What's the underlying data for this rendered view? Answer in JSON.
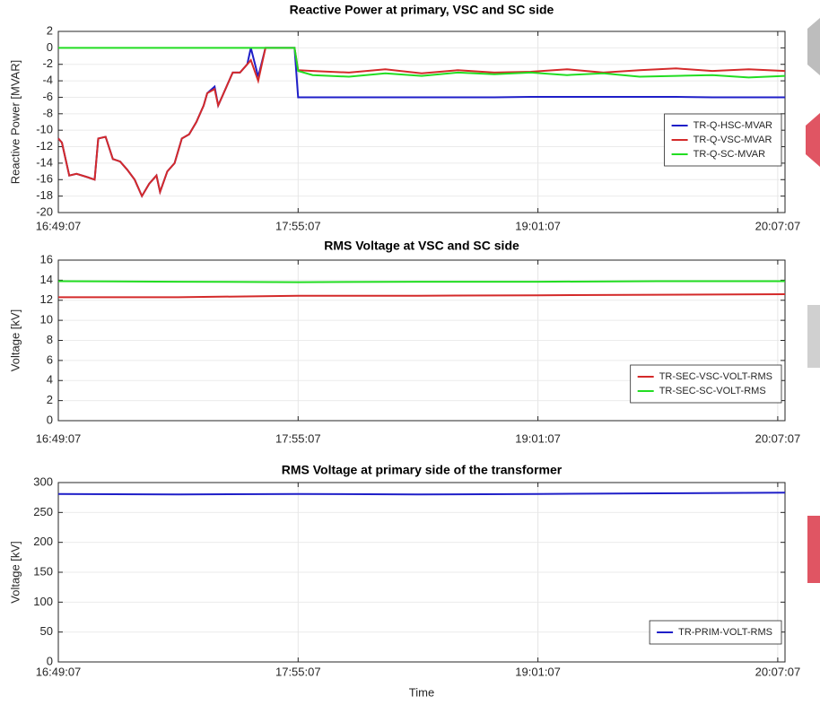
{
  "chart_data": [
    {
      "type": "line",
      "title": "Reactive Power at primary, VSC and SC side",
      "ylabel": "Reactive Power [MVAR]",
      "x": [
        "16:49:07",
        "16:50:07",
        "16:52:07",
        "16:54:07",
        "16:57:07",
        "16:59:07",
        "17:00:07",
        "17:02:07",
        "17:04:07",
        "17:06:07",
        "17:08:07",
        "17:10:07",
        "17:12:07",
        "17:14:07",
        "17:16:07",
        "17:17:07",
        "17:19:07",
        "17:21:07",
        "17:23:07",
        "17:25:07",
        "17:27:07",
        "17:29:07",
        "17:30:07",
        "17:32:07",
        "17:33:07",
        "17:35:07",
        "17:37:07",
        "17:39:07",
        "17:41:07",
        "17:42:07",
        "17:44:07",
        "17:46:07",
        "17:54:07",
        "17:55:07",
        "17:59:07",
        "18:09:07",
        "18:19:07",
        "18:29:07",
        "18:39:07",
        "18:49:07",
        "18:59:07",
        "19:09:07",
        "19:19:07",
        "19:29:07",
        "19:39:07",
        "19:49:07",
        "19:59:07",
        "20:09:07"
      ],
      "series": [
        {
          "name": "TR-Q-HSC-MVAR",
          "color": "#1f1fc8",
          "values": [
            -11,
            -11.5,
            -15.5,
            -15.3,
            -15.7,
            -16,
            -11,
            -10.8,
            -13.5,
            -13.8,
            -14.8,
            -16,
            -18,
            -16.5,
            -15.5,
            -17.5,
            -15,
            -14,
            -11,
            -10.5,
            -9,
            -7,
            -5.5,
            -4.7,
            -7,
            -5,
            -3,
            -3,
            -2,
            0,
            -3.5,
            0,
            0,
            -6,
            -6,
            -6,
            -6,
            -6,
            -6,
            -6,
            -5.95,
            -5.95,
            -5.95,
            -5.95,
            -5.95,
            -6,
            -6,
            -6
          ]
        },
        {
          "name": "TR-Q-VSC-MVAR",
          "color": "#d42a2a",
          "values": [
            -11,
            -11.5,
            -15.5,
            -15.3,
            -15.7,
            -16,
            -11,
            -10.8,
            -13.5,
            -13.8,
            -14.8,
            -16,
            -18,
            -16.5,
            -15.5,
            -17.5,
            -15,
            -14,
            -11,
            -10.5,
            -9,
            -7,
            -5.5,
            -5,
            -7,
            -5,
            -3,
            -3,
            -2,
            -1.5,
            -4,
            0,
            0,
            -2.7,
            -2.8,
            -3,
            -2.6,
            -3.1,
            -2.7,
            -3,
            -2.9,
            -2.6,
            -3,
            -2.7,
            -2.5,
            -2.8,
            -2.6,
            -2.8
          ]
        },
        {
          "name": "TR-Q-SC-MVAR",
          "color": "#22dd22",
          "values": [
            0,
            0,
            0,
            0,
            0,
            0,
            0,
            0,
            0,
            0,
            0,
            0,
            0,
            0,
            0,
            0,
            0,
            0,
            0,
            0,
            0,
            0,
            0,
            0,
            0,
            0,
            0,
            0,
            0,
            0,
            0,
            0,
            0,
            -2.8,
            -3.3,
            -3.5,
            -3.1,
            -3.4,
            -3,
            -3.2,
            -3,
            -3.3,
            -3.1,
            -3.5,
            -3.4,
            -3.3,
            -3.6,
            -3.4
          ]
        }
      ],
      "xlim": [
        "16:49:07",
        "20:09:07"
      ],
      "xticks": [
        "16:49:07",
        "17:55:07",
        "19:01:07",
        "20:07:07"
      ],
      "ylim": [
        -20,
        2
      ],
      "yticks": [
        2,
        0,
        -2,
        -4,
        -6,
        -8,
        -10,
        -12,
        -14,
        -16,
        -18,
        -20
      ],
      "grid": true,
      "legend_loc": "east"
    },
    {
      "type": "line",
      "title": "RMS Voltage at VSC and SC side",
      "ylabel": "Voltage [kV]",
      "x": [
        "16:49:07",
        "17:22:07",
        "17:55:07",
        "18:28:07",
        "19:01:07",
        "19:34:07",
        "20:09:07"
      ],
      "series": [
        {
          "name": "TR-SEC-VSC-VOLT-RMS",
          "color": "#d42a2a",
          "values": [
            12.3,
            12.3,
            12.45,
            12.45,
            12.5,
            12.55,
            12.6
          ]
        },
        {
          "name": "TR-SEC-SC-VOLT-RMS",
          "color": "#22dd22",
          "values": [
            13.9,
            13.85,
            13.8,
            13.85,
            13.85,
            13.9,
            13.9
          ]
        }
      ],
      "xlim": [
        "16:49:07",
        "20:09:07"
      ],
      "xticks": [
        "16:49:07",
        "17:55:07",
        "19:01:07",
        "20:07:07"
      ],
      "ylim": [
        0,
        16
      ],
      "yticks": [
        0,
        2,
        4,
        6,
        8,
        10,
        12,
        14,
        16
      ],
      "grid": true,
      "legend_loc": "southeast"
    },
    {
      "type": "line",
      "title": "RMS Voltage at primary side of the transformer",
      "ylabel": "Voltage [kV]",
      "xlabel": "Time",
      "x": [
        "16:49:07",
        "17:22:07",
        "17:55:07",
        "18:28:07",
        "19:01:07",
        "19:34:07",
        "20:09:07"
      ],
      "series": [
        {
          "name": "TR-PRIM-VOLT-RMS",
          "color": "#1f1fc8",
          "values": [
            281,
            280,
            281,
            280,
            281,
            282,
            283
          ]
        }
      ],
      "xlim": [
        "16:49:07",
        "20:09:07"
      ],
      "xticks": [
        "16:49:07",
        "17:55:07",
        "19:01:07",
        "20:07:07"
      ],
      "ylim": [
        0,
        300
      ],
      "yticks": [
        0,
        50,
        100,
        150,
        200,
        250,
        300
      ],
      "grid": true,
      "legend_loc": "southeast"
    }
  ]
}
